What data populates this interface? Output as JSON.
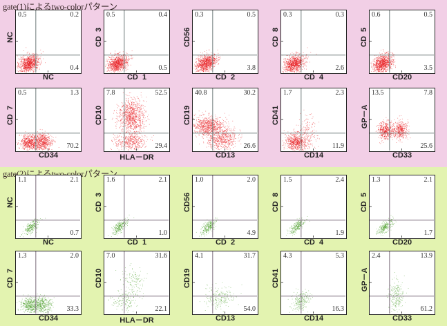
{
  "colors": {
    "top_background": "#f2cfe6",
    "bottom_background": "#e3f3b0",
    "gate1_dots": "#e8161a",
    "gate2_dots": "#3f9a1c",
    "quadrant_line_gate1": "#6e7a7a",
    "quadrant_line_gate2": "#7a6a7a"
  },
  "sections": [
    {
      "title": "gate(1)によるtwo-colorパターン"
    },
    {
      "title": "gate(2)によるtwo-colorパターン"
    }
  ],
  "chart_data": [
    {
      "type": "scatter",
      "title": "gate(1)によるtwo-colorパターン",
      "plot_kind": "flow cytometry dot plots (quadrant percentages)",
      "quadrant_labels": [
        "upper-left",
        "upper-right",
        "lower-right"
      ],
      "panels": [
        {
          "xlabel": "NC",
          "ylabel": "NC",
          "ul": "0.5",
          "ur": "0.2",
          "lr": "0.4",
          "population": "lower-left"
        },
        {
          "xlabel": "CD  1",
          "ylabel": "CD  3",
          "ul": "0.5",
          "ur": "0.4",
          "lr": "0.5",
          "population": "lower-left"
        },
        {
          "xlabel": "CD  2",
          "ylabel": "CD56",
          "ul": "0.3",
          "ur": "0.5",
          "lr": "3.8",
          "population": "lower-left"
        },
        {
          "xlabel": "CD  4",
          "ylabel": "CD  8",
          "ul": "0.3",
          "ur": "0.3",
          "lr": "2.6",
          "population": "lower-left"
        },
        {
          "xlabel": "CD20",
          "ylabel": "CD  5",
          "ul": "0.6",
          "ur": "0.5",
          "lr": "3.5",
          "population": "lower-left"
        },
        {
          "xlabel": "CD34",
          "ylabel": "CD  7",
          "ul": "0.5",
          "ur": "1.3",
          "lr": "70.2",
          "population": "lower-split"
        },
        {
          "xlabel": "HLA－DR",
          "ylabel": "CD10",
          "ul": "7.8",
          "ur": "52.5",
          "lr": "29.4",
          "population": "upper-right-tall"
        },
        {
          "xlabel": "CD13",
          "ylabel": "CD19",
          "ul": "40.8",
          "ur": "30.2",
          "lr": "26.6",
          "population": "diagonal"
        },
        {
          "xlabel": "CD14",
          "ylabel": "CD41",
          "ul": "1.7",
          "ur": "2.3",
          "lr": "11.9",
          "population": "lower-left-spread"
        },
        {
          "xlabel": "CD33",
          "ylabel": "GP－A",
          "ul": "13.5",
          "ur": "7.8",
          "lr": "25.6",
          "population": "two-clusters"
        }
      ]
    },
    {
      "type": "scatter",
      "title": "gate(2)によるtwo-colorパターン",
      "plot_kind": "flow cytometry dot plots (quadrant percentages)",
      "quadrant_labels": [
        "upper-left",
        "upper-right",
        "lower-right"
      ],
      "panels": [
        {
          "xlabel": "NC",
          "ylabel": "NC",
          "ul": "1.1",
          "ur": "2.1",
          "lr": "0.7",
          "population": "diag-small"
        },
        {
          "xlabel": "CD  1",
          "ylabel": "CD  3",
          "ul": "1.6",
          "ur": "2.1",
          "lr": "1.0",
          "population": "diag-small"
        },
        {
          "xlabel": "CD  2",
          "ylabel": "CD56",
          "ul": "1.0",
          "ur": "2.0",
          "lr": "4.9",
          "population": "diag-small"
        },
        {
          "xlabel": "CD  4",
          "ylabel": "CD  8",
          "ul": "1.5",
          "ur": "2.4",
          "lr": "1.9",
          "population": "diag-small"
        },
        {
          "xlabel": "CD20",
          "ylabel": "CD  5",
          "ul": "1.3",
          "ur": "2.1",
          "lr": "1.7",
          "population": "diag-small"
        },
        {
          "xlabel": "CD34",
          "ylabel": "CD  7",
          "ul": "1.3",
          "ur": "2.0",
          "lr": "33.3",
          "population": "lower-split"
        },
        {
          "xlabel": "HLA－DR",
          "ylabel": "CD10",
          "ul": "7.0",
          "ur": "31.6",
          "lr": "22.1",
          "population": "sparse-center"
        },
        {
          "xlabel": "CD13",
          "ylabel": "CD19",
          "ul": "4.1",
          "ur": "31.7",
          "lr": "54.0",
          "population": "sparse-right"
        },
        {
          "xlabel": "CD14",
          "ylabel": "CD41",
          "ul": "4.3",
          "ur": "5.3",
          "lr": "16.3",
          "population": "center-cluster"
        },
        {
          "xlabel": "CD33",
          "ylabel": "GP－A",
          "ul": "2.4",
          "ur": "13.9",
          "lr": "61.2",
          "population": "vertical-cluster"
        }
      ]
    }
  ]
}
